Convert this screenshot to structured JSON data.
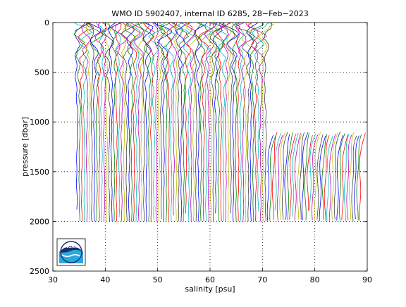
{
  "chart_data": {
    "type": "line",
    "title": "WMO ID 5902407, internal ID 6285, 28−Feb−2023",
    "xlabel": "salinity [psu]",
    "ylabel": "pressure [dbar]",
    "xlim": [
      30,
      90
    ],
    "ylim": [
      0,
      2500
    ],
    "y_reversed": true,
    "grid": "dotted",
    "x_ticks": [
      30,
      40,
      50,
      60,
      70,
      80,
      90
    ],
    "y_ticks": [
      0,
      500,
      1000,
      1500,
      2000,
      2500
    ],
    "x_tick_labels": [
      "30",
      "40",
      "50",
      "60",
      "70",
      "80",
      "90"
    ],
    "y_tick_labels": [
      "0",
      "500",
      "1000",
      "1500",
      "2000",
      "2500"
    ],
    "description": "Waterfall of Argo float salinity profiles; each successive profile is offset to the right by a constant step.",
    "profile_first_offset_psu": 34.6,
    "profile_last_offset_psu": 88.6,
    "profile_count": 115,
    "profile_offset_step_psu": 0.4737,
    "profile_max_pressure_dbar": 2000,
    "later_profiles_top_dbar": 1100,
    "later_profiles_start_psu": 71.0,
    "series_colors": [
      "#0000ff",
      "#008000",
      "#ff0000",
      "#00bfbf",
      "#bf00bf",
      "#bfbf00",
      "#404040"
    ],
    "logo": {
      "name": "noaa-logo",
      "text": "NOAA",
      "colors": {
        "navy": "#1a2f6b",
        "sky": "#2aa7e0",
        "white": "#ffffff"
      }
    }
  }
}
